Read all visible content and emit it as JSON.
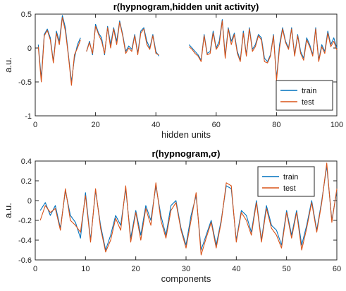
{
  "colors": {
    "train": "#0072BD",
    "test": "#D95319",
    "axis": "#262626"
  },
  "chart_data": [
    {
      "type": "line",
      "title": "r(hypnogram,hidden unit activity)",
      "xlabel": "hidden units",
      "ylabel": "a.u.",
      "xlim": [
        0,
        100
      ],
      "ylim": [
        -1,
        0.5
      ],
      "xticks": [
        0,
        20,
        40,
        60,
        80,
        100
      ],
      "yticks": [
        -1,
        -0.5,
        0,
        0.5
      ],
      "xtick_labels": [
        "0",
        "20",
        "40",
        "60",
        "80",
        "100"
      ],
      "ytick_labels": [
        "-1",
        "-0.5",
        "0",
        "0.5"
      ],
      "legend_position": "bottom-right",
      "x": [
        1,
        2,
        3,
        4,
        5,
        6,
        7,
        8,
        9,
        10,
        11,
        12,
        13,
        14,
        15,
        16,
        17,
        18,
        19,
        20,
        21,
        22,
        23,
        24,
        25,
        26,
        27,
        28,
        29,
        30,
        31,
        32,
        33,
        34,
        35,
        36,
        37,
        38,
        39,
        40,
        41,
        42,
        43,
        44,
        45,
        46,
        47,
        48,
        49,
        50,
        51,
        52,
        53,
        54,
        55,
        56,
        57,
        58,
        59,
        60,
        61,
        62,
        63,
        64,
        65,
        66,
        67,
        68,
        69,
        70,
        71,
        72,
        73,
        74,
        75,
        76,
        77,
        78,
        79,
        80,
        81,
        82,
        83,
        84,
        85,
        86,
        87,
        88,
        89,
        90,
        91,
        92,
        93,
        94,
        95,
        96,
        97,
        98,
        99,
        100
      ],
      "series": [
        {
          "name": "train",
          "values": [
            0.05,
            -0.45,
            0.2,
            0.28,
            0.15,
            -0.2,
            0.25,
            0.1,
            0.48,
            0.3,
            -0.1,
            -0.5,
            -0.15,
            0.05,
            0.15,
            null,
            -0.05,
            0.1,
            -0.1,
            0.35,
            0.22,
            0.15,
            -0.1,
            0.32,
            0.05,
            0.3,
            0.1,
            0.4,
            0.2,
            -0.05,
            0.03,
            -0.02,
            0.2,
            -0.08,
            0.25,
            0.3,
            0.1,
            0.0,
            0.2,
            -0.05,
            -0.12,
            null,
            null,
            null,
            null,
            null,
            null,
            null,
            null,
            null,
            0.05,
            0.0,
            -0.05,
            -0.1,
            -0.18,
            0.2,
            -0.08,
            -0.05,
            0.25,
            0.0,
            0.1,
            0.42,
            -0.12,
            0.3,
            0.1,
            0.22,
            -0.05,
            -0.18,
            0.25,
            -0.1,
            0.3,
            -0.02,
            0.05,
            0.2,
            0.15,
            -0.15,
            -0.2,
            -0.1,
            0.2,
            -0.45,
            0.05,
            0.3,
            0.1,
            0.0,
            0.3,
            -0.1,
            0.2,
            -0.05,
            -0.15,
            0.15,
            0.05,
            -0.1,
            0.3,
            -0.18,
            0.05,
            -0.05,
            0.25,
            0.05,
            0.15,
            0.0
          ]
        },
        {
          "name": "test",
          "values": [
            0.02,
            -0.5,
            0.18,
            0.26,
            0.12,
            -0.22,
            0.22,
            0.05,
            0.45,
            0.25,
            -0.12,
            -0.55,
            -0.1,
            0.0,
            0.12,
            null,
            -0.05,
            0.08,
            -0.08,
            0.32,
            0.2,
            0.1,
            -0.08,
            0.3,
            0.0,
            0.28,
            0.05,
            0.38,
            0.18,
            -0.08,
            0.0,
            -0.05,
            0.18,
            -0.1,
            0.22,
            0.28,
            0.05,
            -0.02,
            0.18,
            -0.08,
            -0.1,
            null,
            null,
            null,
            null,
            null,
            null,
            null,
            null,
            null,
            0.02,
            -0.02,
            -0.08,
            -0.12,
            -0.2,
            0.18,
            -0.1,
            -0.08,
            0.22,
            -0.02,
            0.05,
            0.4,
            -0.15,
            0.28,
            0.05,
            0.2,
            -0.08,
            -0.2,
            0.22,
            -0.12,
            0.28,
            -0.05,
            0.02,
            0.18,
            0.12,
            -0.2,
            -0.22,
            -0.12,
            0.18,
            -0.48,
            0.0,
            0.28,
            0.08,
            -0.02,
            0.28,
            -0.12,
            0.18,
            -0.08,
            -0.18,
            0.12,
            0.02,
            -0.12,
            0.28,
            -0.2,
            0.02,
            -0.08,
            0.22,
            0.02,
            0.1,
            -0.03
          ]
        }
      ]
    },
    {
      "type": "line",
      "title": "r(hypnogram,σ)",
      "xlabel": "components",
      "ylabel": "a.u.",
      "xlim": [
        0,
        60
      ],
      "ylim": [
        -0.6,
        0.4
      ],
      "xticks": [
        0,
        10,
        20,
        30,
        40,
        50,
        60
      ],
      "yticks": [
        -0.6,
        -0.4,
        -0.2,
        0,
        0.2,
        0.4
      ],
      "xtick_labels": [
        "0",
        "10",
        "20",
        "30",
        "40",
        "50",
        "60"
      ],
      "ytick_labels": [
        "-0.6",
        "-0.4",
        "-0.2",
        "0",
        "0.2",
        "0.4"
      ],
      "legend_position": "top-right",
      "x": [
        1,
        2,
        3,
        4,
        5,
        6,
        7,
        8,
        9,
        10,
        11,
        12,
        13,
        14,
        15,
        16,
        17,
        18,
        19,
        20,
        21,
        22,
        23,
        24,
        25,
        26,
        27,
        28,
        29,
        30,
        31,
        32,
        33,
        34,
        35,
        36,
        37,
        38,
        39,
        40,
        41,
        42,
        43,
        44,
        45,
        46,
        47,
        48,
        49,
        50,
        51,
        52,
        53,
        54,
        55,
        56,
        57,
        58,
        59,
        60
      ],
      "series": [
        {
          "name": "train",
          "values": [
            -0.1,
            -0.02,
            -0.15,
            -0.05,
            -0.28,
            0.1,
            -0.15,
            -0.22,
            -0.38,
            0.08,
            -0.4,
            0.1,
            -0.25,
            -0.5,
            -0.35,
            -0.15,
            -0.25,
            0.12,
            -0.38,
            -0.1,
            -0.35,
            -0.05,
            -0.2,
            0.15,
            -0.15,
            -0.35,
            -0.05,
            0.0,
            -0.28,
            -0.45,
            -0.15,
            0.05,
            -0.5,
            -0.35,
            -0.2,
            -0.45,
            -0.2,
            0.15,
            0.12,
            -0.4,
            -0.1,
            -0.15,
            -0.32,
            0.0,
            -0.4,
            -0.05,
            -0.25,
            -0.3,
            -0.45,
            -0.1,
            -0.35,
            -0.1,
            -0.45,
            -0.25,
            0.0,
            -0.3,
            0.0,
            0.35,
            -0.2,
            0.1
          ]
        },
        {
          "name": "test",
          "values": [
            -0.2,
            -0.05,
            -0.12,
            -0.08,
            -0.3,
            0.12,
            -0.2,
            -0.25,
            -0.32,
            0.05,
            -0.42,
            0.12,
            -0.28,
            -0.52,
            -0.4,
            -0.18,
            -0.3,
            0.15,
            -0.42,
            -0.12,
            -0.4,
            -0.08,
            -0.25,
            0.18,
            -0.2,
            -0.38,
            -0.1,
            -0.02,
            -0.3,
            -0.48,
            -0.2,
            0.08,
            -0.55,
            -0.38,
            -0.22,
            -0.48,
            -0.22,
            0.18,
            0.15,
            -0.42,
            -0.12,
            -0.2,
            -0.35,
            -0.02,
            -0.42,
            -0.08,
            -0.28,
            -0.35,
            -0.48,
            -0.12,
            -0.38,
            -0.12,
            -0.5,
            -0.28,
            -0.02,
            -0.32,
            -0.02,
            0.38,
            -0.22,
            0.12
          ]
        }
      ]
    }
  ]
}
